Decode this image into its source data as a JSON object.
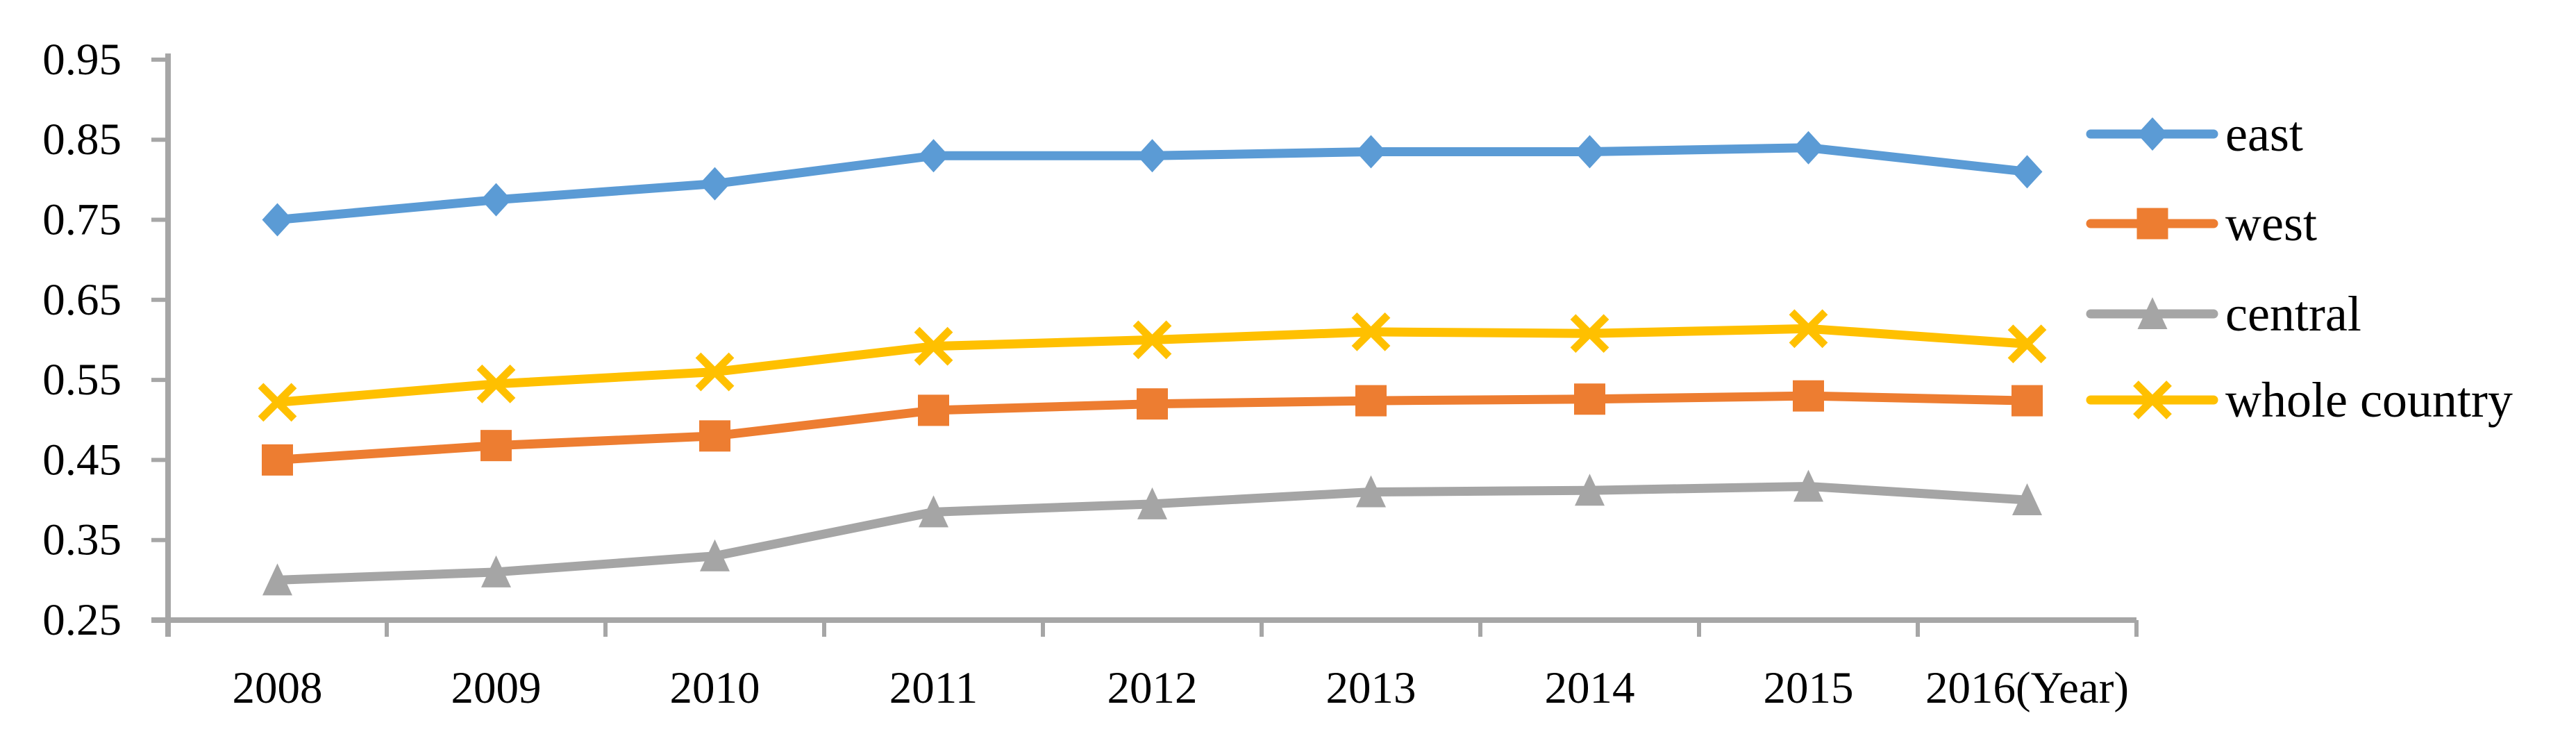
{
  "chart_data": {
    "type": "line",
    "title": "",
    "xlabel": "",
    "ylabel": "",
    "x_axis_unit_suffix": "(Year)",
    "categories": [
      "2008",
      "2009",
      "2010",
      "2011",
      "2012",
      "2013",
      "2014",
      "2015",
      "2016"
    ],
    "x_tick_labels": [
      "2008",
      "2009",
      "2010",
      "2011",
      "2012",
      "2013",
      "2014",
      "2015",
      "2016(Year)"
    ],
    "y_ticks": [
      0.25,
      0.35,
      0.45,
      0.55,
      0.65,
      0.75,
      0.85,
      0.95
    ],
    "y_tick_labels": [
      "0.25",
      "0.35",
      "0.45",
      "0.55",
      "0.65",
      "0.75",
      "0.85",
      "0.95"
    ],
    "ylim": [
      0.25,
      0.95
    ],
    "grid": false,
    "legend_position": "right",
    "axis_color": "#A6A6A6",
    "text_color": "#000000",
    "series": [
      {
        "name": "east",
        "marker": "diamond",
        "color": "#5B9BD5",
        "values": [
          0.75,
          0.775,
          0.795,
          0.83,
          0.83,
          0.835,
          0.835,
          0.84,
          0.81
        ]
      },
      {
        "name": "west",
        "marker": "square",
        "color": "#ED7D31",
        "values": [
          0.45,
          0.468,
          0.48,
          0.512,
          0.52,
          0.524,
          0.526,
          0.53,
          0.524
        ]
      },
      {
        "name": "central",
        "marker": "triangle",
        "color": "#A5A5A5",
        "values": [
          0.3,
          0.31,
          0.33,
          0.385,
          0.395,
          0.41,
          0.412,
          0.417,
          0.4
        ]
      },
      {
        "name": "whole country",
        "marker": "x",
        "color": "#FFC000",
        "values": [
          0.522,
          0.545,
          0.56,
          0.592,
          0.6,
          0.61,
          0.608,
          0.614,
          0.595
        ]
      }
    ]
  }
}
